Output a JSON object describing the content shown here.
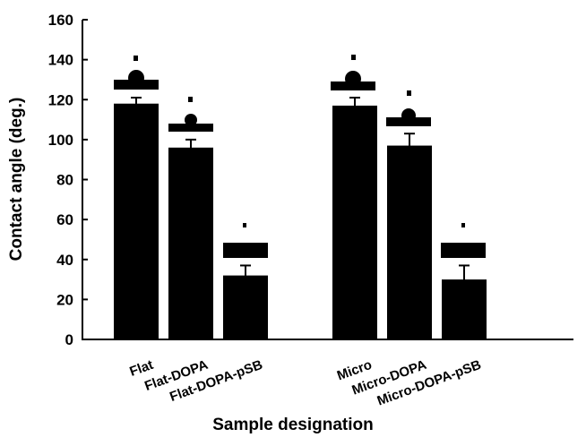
{
  "chart_data": {
    "type": "bar",
    "x_label": "Sample designation",
    "y_label": "Contact angle (deg.)",
    "categories": [
      "Flat",
      "Flat-DOPA",
      "Flat-DOPA-pSB",
      null,
      "Micro",
      "Micro-DOPA",
      "Micro-DOPA-pSB"
    ],
    "values": [
      118,
      96,
      32,
      null,
      117,
      97,
      30
    ],
    "errors": [
      3,
      4,
      5,
      null,
      4,
      6,
      7
    ],
    "color": "#000000",
    "ylim": [
      0,
      160
    ],
    "yticks": [
      0,
      20,
      40,
      60,
      80,
      100,
      120,
      140,
      160
    ]
  }
}
